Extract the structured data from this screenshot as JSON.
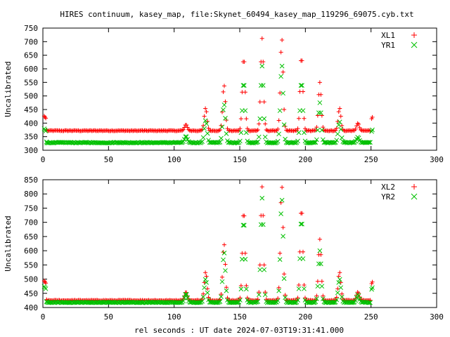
{
  "figure": {
    "title": "HIRES continuum, kasey_map, file:Skynet_60494_kasey_map_119296_69075.cyb.txt",
    "xlabel": "rel seconds : UT date 2024-07-03T19:31:41.000"
  },
  "chart_data": [
    {
      "type": "scatter",
      "ylabel": "Uncalibrated",
      "xlim": [
        0,
        300
      ],
      "ylim": [
        300,
        750
      ],
      "xticks": [
        0,
        50,
        100,
        150,
        200,
        250,
        300
      ],
      "yticks": [
        300,
        350,
        400,
        450,
        500,
        550,
        600,
        650,
        700,
        750
      ],
      "grid": false,
      "legend": "top-right",
      "series": [
        {
          "name": "XL1",
          "marker": "plus",
          "color": "#ff0000",
          "baseline": 372,
          "edge": 422,
          "peaks": [
            [
              109,
              395
            ],
            [
              124,
              455
            ],
            [
              138,
              540
            ],
            [
              153,
              645
            ],
            [
              167,
              712
            ],
            [
              182,
              712
            ],
            [
              197,
              650
            ],
            [
              211,
              550
            ],
            [
              226,
              455
            ],
            [
              240,
              400
            ]
          ]
        },
        {
          "name": "YR1",
          "marker": "cross",
          "color": "#00c000",
          "baseline": 328,
          "edge": 375,
          "peaks": [
            [
              109,
              352
            ],
            [
              124,
              410
            ],
            [
              138,
              470
            ],
            [
              153,
              555
            ],
            [
              167,
              610
            ],
            [
              182,
              615
            ],
            [
              197,
              555
            ],
            [
              211,
              475
            ],
            [
              226,
              405
            ],
            [
              240,
              348
            ]
          ]
        }
      ]
    },
    {
      "type": "scatter",
      "ylabel": "Uncalibrated",
      "xlim": [
        0,
        300
      ],
      "ylim": [
        400,
        850
      ],
      "xticks": [
        0,
        50,
        100,
        150,
        200,
        250,
        300
      ],
      "yticks": [
        400,
        450,
        500,
        550,
        600,
        650,
        700,
        750,
        800,
        850
      ],
      "grid": false,
      "legend": "top-right",
      "series": [
        {
          "name": "XL2",
          "marker": "plus",
          "color": "#ff0000",
          "baseline": 425,
          "edge": 490,
          "peaks": [
            [
              109,
              455
            ],
            [
              124,
              525
            ],
            [
              138,
              625
            ],
            [
              153,
              745
            ],
            [
              167,
              825
            ],
            [
              182,
              830
            ],
            [
              197,
              755
            ],
            [
              211,
              640
            ],
            [
              226,
              525
            ],
            [
              240,
              455
            ]
          ]
        },
        {
          "name": "YR2",
          "marker": "cross",
          "color": "#00c000",
          "baseline": 418,
          "edge": 470,
          "peaks": [
            [
              109,
              448
            ],
            [
              124,
              500
            ],
            [
              138,
              595
            ],
            [
              153,
              710
            ],
            [
              167,
              785
            ],
            [
              182,
              785
            ],
            [
              197,
              715
            ],
            [
              211,
              600
            ],
            [
              226,
              500
            ],
            [
              240,
              445
            ]
          ]
        }
      ]
    }
  ]
}
